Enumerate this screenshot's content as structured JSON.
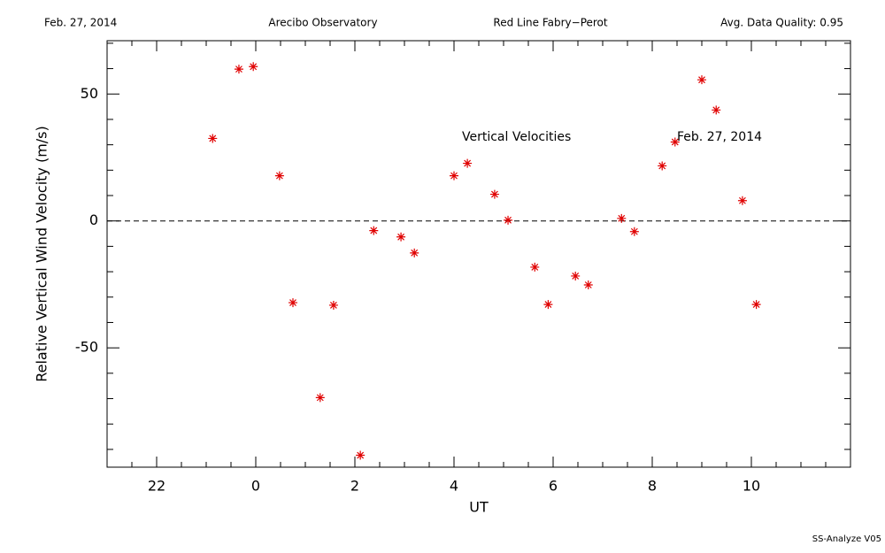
{
  "header": {
    "date": "Feb. 27, 2014",
    "site": "Arecibo Observatory",
    "instrument": "Red Line Fabry−Perot",
    "quality": "Avg. Data Quality: 0.95"
  },
  "footer": "SS-Analyze V05",
  "chart_data": {
    "type": "scatter",
    "xlabel": "UT",
    "ylabel": "Relative Vertical Wind Velocity (m/s)",
    "annotations": [
      "Vertical Velocities",
      "Feb. 27, 2014"
    ],
    "marker": "asterisk",
    "color": "#e00000",
    "reference_line": 0,
    "xlim": [
      21,
      36
    ],
    "ylim": [
      -97,
      71
    ],
    "xticks": [
      {
        "value": 22,
        "label": "22"
      },
      {
        "value": 24,
        "label": "0"
      },
      {
        "value": 26,
        "label": "2"
      },
      {
        "value": 28,
        "label": "4"
      },
      {
        "value": 30,
        "label": "6"
      },
      {
        "value": 32,
        "label": "8"
      },
      {
        "value": 34,
        "label": "10"
      }
    ],
    "yticks": [
      -50,
      0,
      50
    ],
    "x_minor_ticks": [
      21.5,
      22.5,
      23,
      23.5,
      24.5,
      25,
      25.5,
      26.5,
      27,
      27.5,
      28.5,
      29,
      29.5,
      30.5,
      31,
      31.5,
      32.5,
      33,
      33.5,
      34.5,
      35,
      35.5
    ],
    "y_minor_ticks": [
      -90,
      -80,
      -70,
      -60,
      -40,
      -30,
      -20,
      -10,
      10,
      20,
      30,
      40,
      60,
      70
    ],
    "x": [
      23.13,
      23.66,
      23.95,
      24.48,
      24.75,
      25.3,
      25.57,
      26.11,
      26.38,
      26.93,
      27.2,
      28.0,
      28.27,
      28.82,
      29.09,
      29.63,
      29.9,
      30.45,
      30.71,
      31.38,
      31.64,
      32.2,
      32.46,
      33.0,
      33.29,
      33.82,
      34.1
    ],
    "values": [
      32.5,
      59.8,
      60.8,
      17.8,
      -32.2,
      -69.6,
      -33.2,
      -92.3,
      -3.8,
      -6.3,
      -12.6,
      17.8,
      22.7,
      10.5,
      0.3,
      -18.2,
      -32.9,
      -21.7,
      -25.2,
      1.0,
      -4.2,
      21.7,
      31.1,
      55.6,
      43.7,
      8.0,
      -32.9
    ]
  }
}
